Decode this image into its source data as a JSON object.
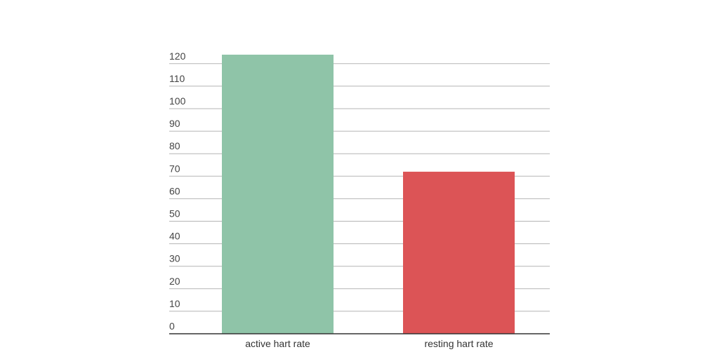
{
  "chart_data": {
    "type": "bar",
    "title": "",
    "xlabel": "",
    "ylabel": "",
    "categories": [
      "active hart rate",
      "resting hart rate"
    ],
    "values": [
      124,
      72
    ],
    "colors": [
      "#8fc4a8",
      "#dc5456"
    ],
    "ylim": [
      0,
      120
    ],
    "yticks": [
      "0",
      "10",
      "20",
      "30",
      "40",
      "50",
      "60",
      "70",
      "80",
      "90",
      "100",
      "110",
      "120"
    ],
    "grid": true,
    "legend": "none"
  }
}
